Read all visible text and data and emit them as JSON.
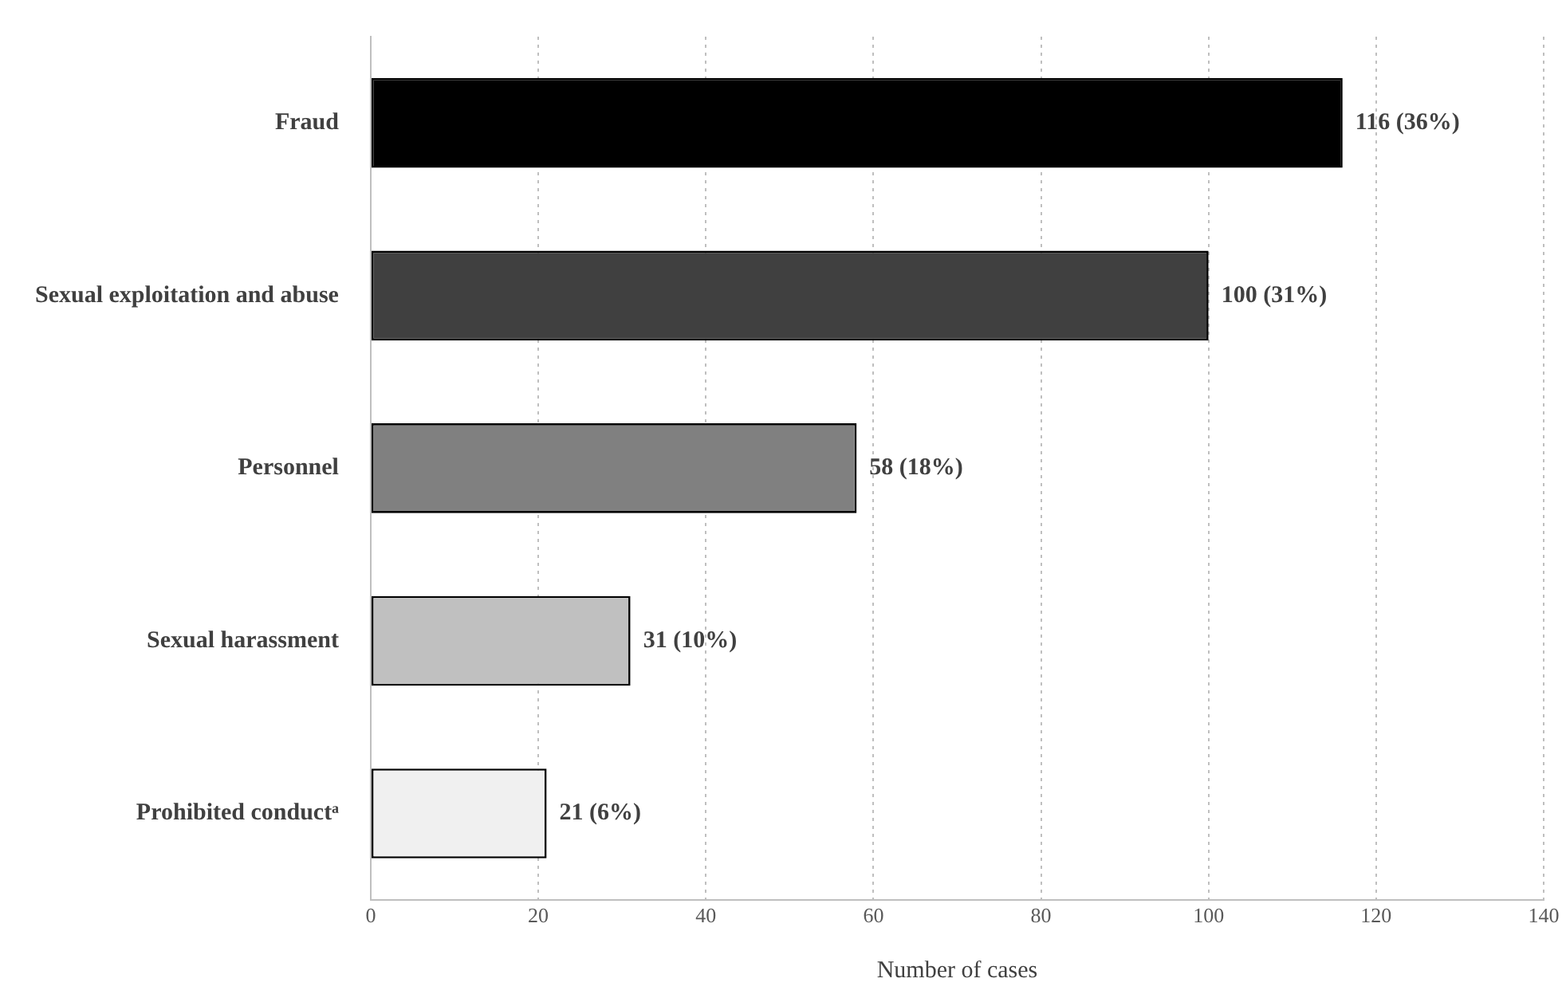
{
  "chart_data": {
    "type": "bar",
    "orientation": "horizontal",
    "xlabel": "Number of cases",
    "categories": [
      "Fraud",
      "Sexual exploitation and abuse",
      "Personnel",
      "Sexual harassment",
      "Prohibited conductᵃ"
    ],
    "values": [
      116,
      100,
      58,
      31,
      21
    ],
    "colors": [
      "#000000",
      "#404040",
      "#808080",
      "#c0c0c0",
      "#f0f0f0"
    ],
    "value_labels": [
      "116 (36%)",
      "100 (31%)",
      "58 (18%)",
      "31 (10%)",
      "21 (6%)"
    ],
    "xlim": [
      0,
      140
    ],
    "xticks": [
      0,
      20,
      40,
      60,
      80,
      100,
      120,
      140
    ],
    "grid": "x",
    "legend": false
  }
}
